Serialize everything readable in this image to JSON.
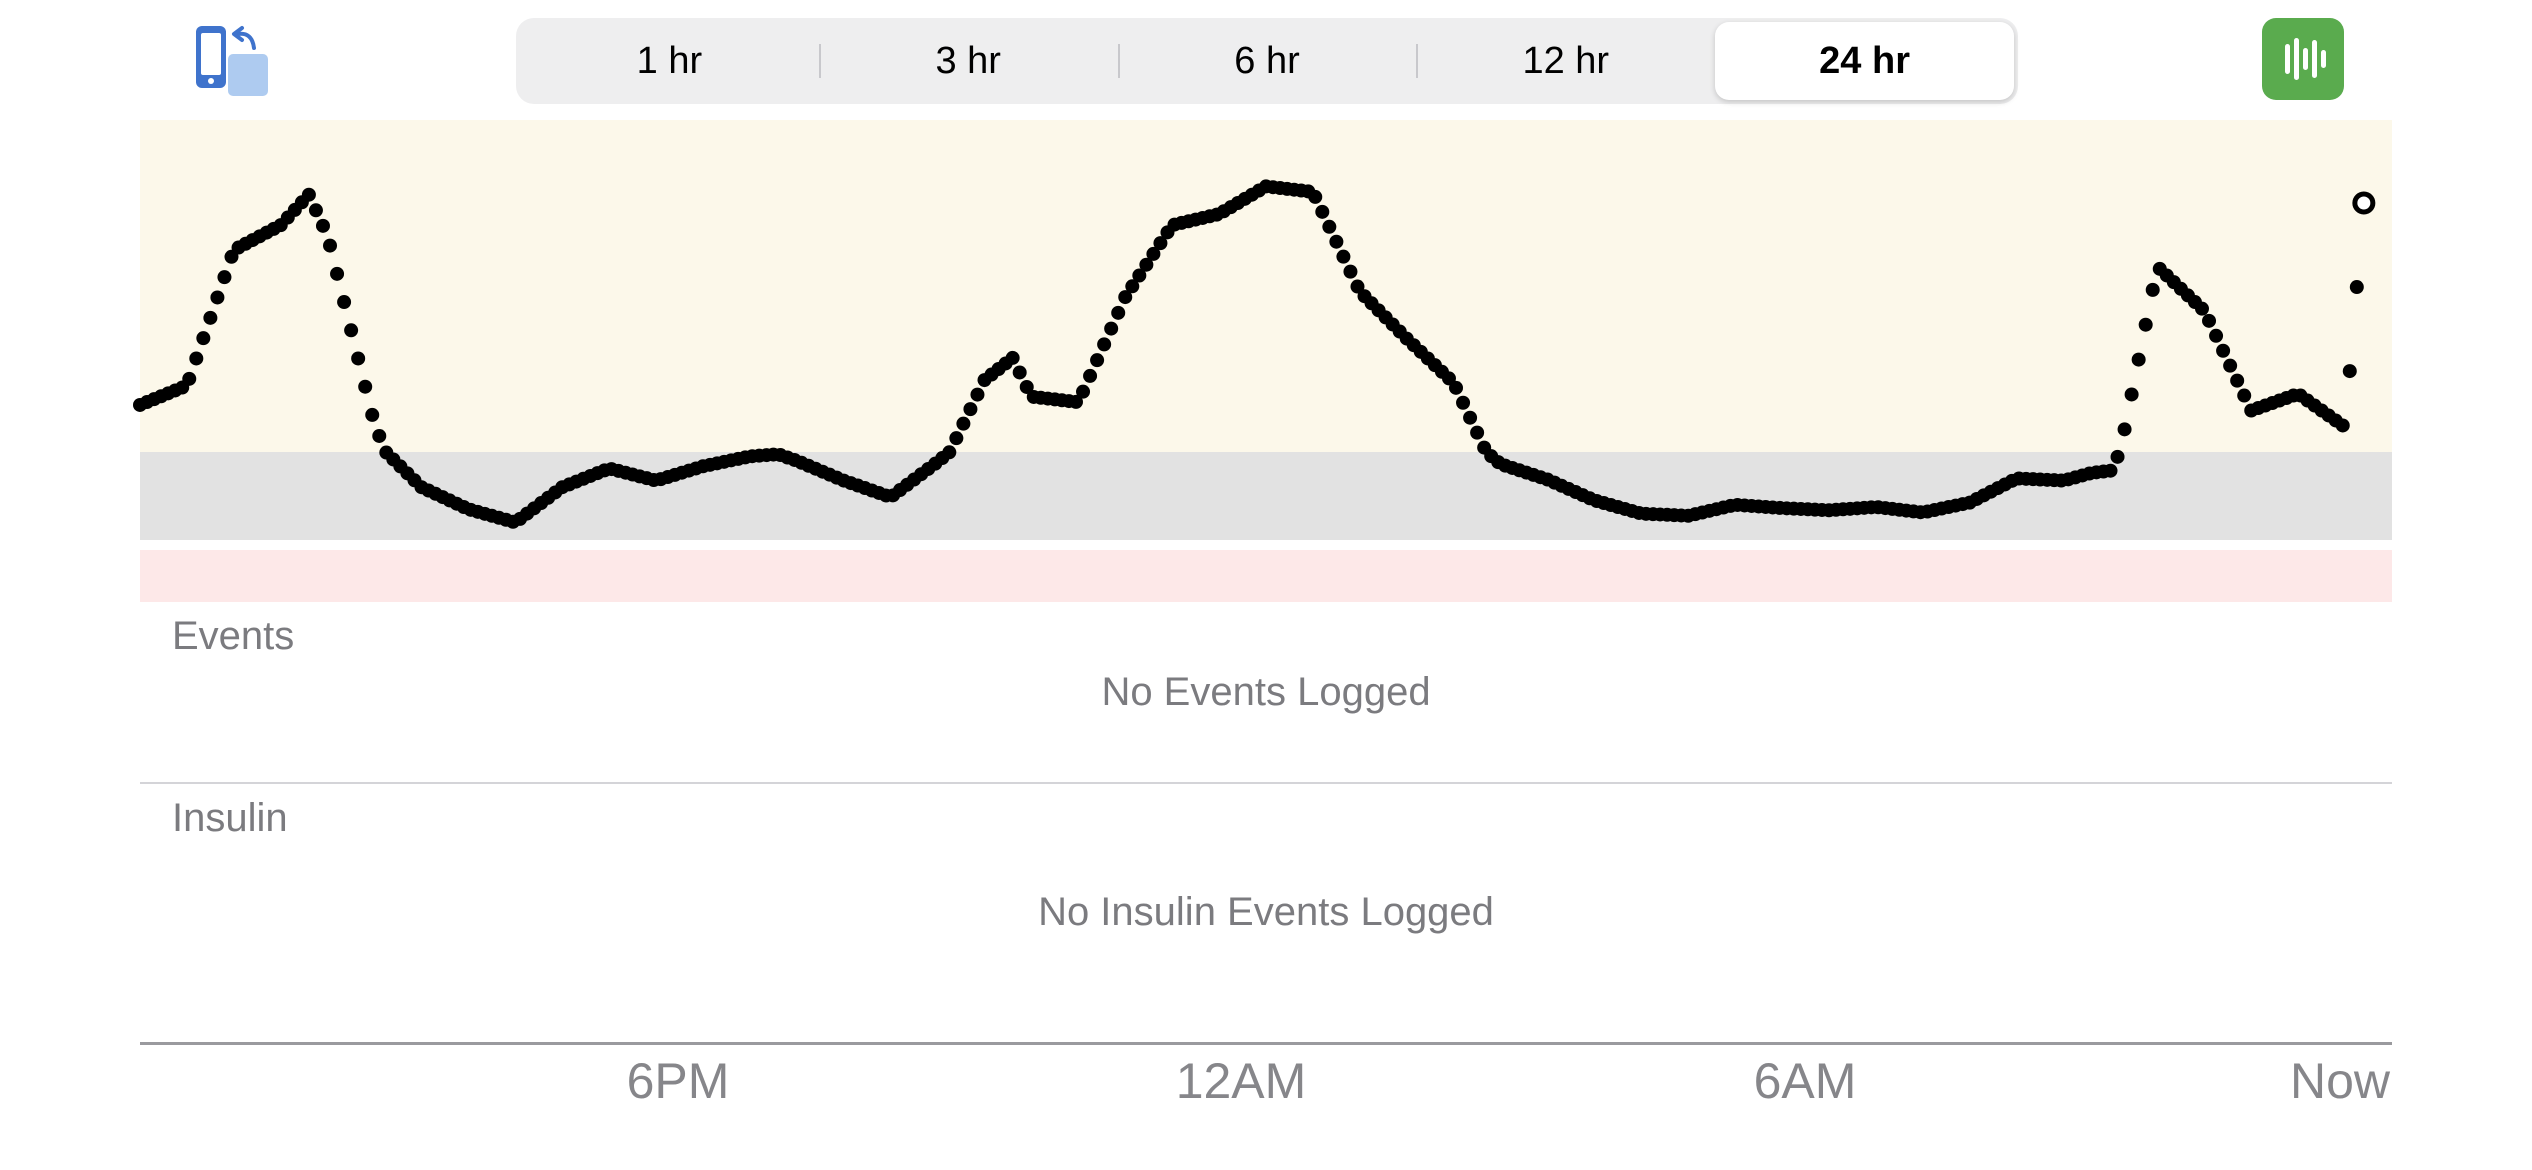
{
  "toolbar": {
    "rotate_icon": "phone-rotate-icon",
    "stats_icon": "bar-chart-icon",
    "accent": "#5aab4e",
    "segments": [
      {
        "label": "1 hr",
        "selected": false
      },
      {
        "label": "3 hr",
        "selected": false
      },
      {
        "label": "6 hr",
        "selected": false
      },
      {
        "label": "12 hr",
        "selected": false
      },
      {
        "label": "24 hr",
        "selected": true
      }
    ]
  },
  "chart_data": {
    "type": "scatter",
    "title": "",
    "xlabel": "",
    "ylabel": "",
    "x_ticks": [
      "6PM",
      "12AM",
      "6AM",
      "Now"
    ],
    "xlim": [
      0,
      24
    ],
    "ylim": [
      40,
      300
    ],
    "bands": [
      {
        "name": "high",
        "from": 180,
        "to": 300,
        "color": "#fcf8ea"
      },
      {
        "name": "target",
        "from": 100,
        "to": 180,
        "color": "#e2e2e2"
      },
      {
        "name": "low",
        "from": 70,
        "to": 95,
        "color": "#fde8e8"
      }
    ],
    "series": [
      {
        "marker": "dot",
        "last_point_hollow": true,
        "x": [
          0.0,
          0.5,
          1.0,
          1.5,
          1.8,
          2.0,
          2.5,
          3.0,
          3.5,
          4.0,
          4.5,
          5.0,
          5.5,
          6.0,
          6.5,
          6.8,
          7.0,
          7.5,
          8.0,
          8.5,
          9.0,
          9.3,
          9.5,
          10.0,
          10.5,
          11.0,
          11.5,
          12.0,
          12.5,
          13.0,
          13.5,
          14.0,
          14.5,
          15.0,
          15.5,
          16.0,
          16.5,
          17.0,
          17.5,
          18.0,
          18.5,
          19.0,
          19.5,
          20.0,
          20.5,
          20.8,
          21.0,
          21.5,
          22.0,
          22.5,
          23.0,
          23.5,
          23.7
        ],
        "y": [
          197,
          204,
          253,
          262,
          273,
          258,
          190,
          148,
          128,
          116,
          148,
          165,
          154,
          167,
          176,
          178,
          172,
          154,
          139,
          171,
          206,
          214,
          200,
          198,
          236,
          262,
          266,
          276,
          274,
          238,
          221,
          205,
          169,
          155,
          136,
          124,
          122,
          132,
          129,
          127,
          130,
          125,
          134,
          156,
          154,
          161,
          163,
          247,
          231,
          195,
          201,
          189,
          270
        ]
      }
    ]
  },
  "events": {
    "label": "Events",
    "empty": "No Events Logged"
  },
  "insulin": {
    "label": "Insulin",
    "empty": "No Insulin Events Logged"
  }
}
